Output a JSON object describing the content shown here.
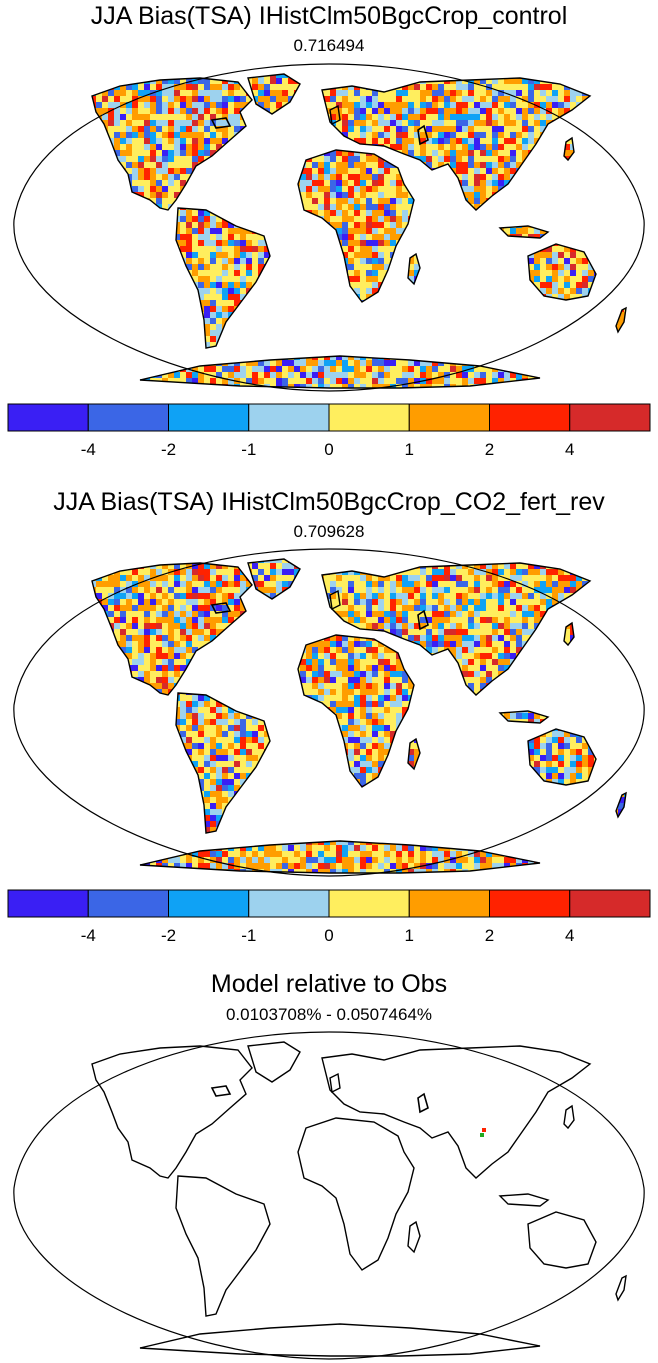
{
  "panels": [
    {
      "title": "JJA Bias(TSA) IHistClm50BgcCrop_control",
      "subtitle": "0.716494",
      "type": "bias"
    },
    {
      "title": "JJA Bias(TSA) IHistClm50BgcCrop_CO2_fert_rev",
      "subtitle": "0.709628",
      "type": "bias"
    },
    {
      "title": "Model relative to Obs",
      "subtitle": "0.0103708% - 0.0507464%",
      "type": "relative"
    }
  ],
  "colorbar": {
    "colors": [
      "#3a1ff4",
      "#3b66e6",
      "#0fa2f5",
      "#9dd2ee",
      "#ffee5e",
      "#ff9d00",
      "#ff2200",
      "#d62a2a"
    ],
    "tick_labels": [
      "-4",
      "-2",
      "-1",
      "0",
      "1",
      "2",
      "4"
    ]
  },
  "relative_markers": [
    {
      "color": "#ff2200"
    },
    {
      "color": "#22aa22"
    }
  ]
}
